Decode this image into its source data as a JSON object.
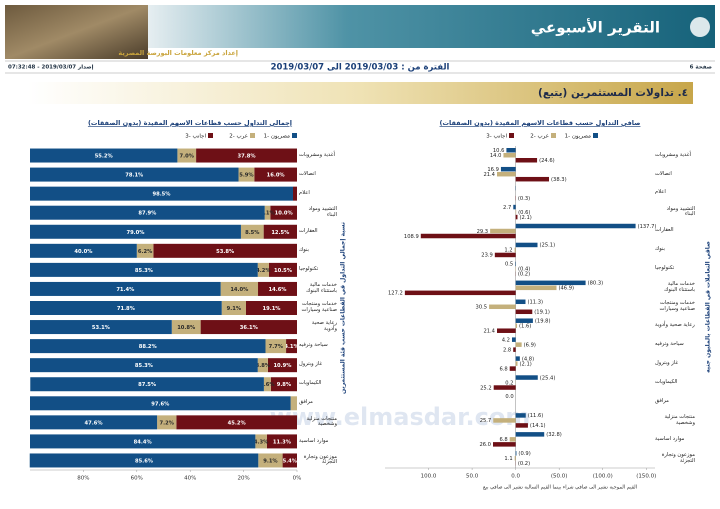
{
  "header": {
    "title": "التقرير الأسبوعي",
    "subtitle": "إعداد مركز معلومات البورصة المصرية",
    "page": "صفحة 6",
    "issued": "إصدار 2019/03/07 - 07:32:48",
    "period": "الفترة من : 2019/03/03 الى 2019/03/07",
    "section": "٤. تداولات المستثمرين (يتبع)",
    "watermark": "www.elmasdar.com"
  },
  "note": "القيم الموجبة تشير الى صافي شراء بينما القيم السالبة تشير الى صافي بيع",
  "chart_data": [
    {
      "type": "bar",
      "orientation": "horizontal",
      "stacked": true,
      "title": "إجمالي التداول حسب قطاعات الاسهم المقيدة (بدون الصفقات)",
      "y_label": "نسبة إجمالي التداول في القطاعات حسب فئة المستثمرين",
      "categories": [
        "أغذية ومشروبات",
        "اتصالات",
        "اعلام",
        "التشييد ومواد البناء",
        "العقارات",
        "بنوك",
        "تكنولوجيا",
        "خدمات مالية باستثناء البنوك",
        "خدمات ومنتجات صناعية وسيارات",
        "رعاية صحية وأدوية",
        "سياحة وترفيه",
        "غاز وبترول",
        "الكيماويات",
        "مرافق",
        "منتجات منزلية وشخصية",
        "موارد اساسية",
        "موزعون وتجارة التجزئة"
      ],
      "series": [
        {
          "name": "مصريون -1",
          "color": "#124f86",
          "values": [
            55.2,
            78.1,
            98.5,
            87.9,
            79.0,
            40.0,
            85.3,
            71.4,
            71.8,
            53.1,
            88.2,
            85.3,
            87.5,
            97.6,
            47.6,
            84.4,
            85.6
          ],
          "value_labels": [
            "55.2%",
            "78.1%",
            "98.5%",
            "87.9%",
            "79.0%",
            "40.0%",
            "85.3%",
            "71.4%",
            "71.8%",
            "53.1%",
            "88.2%",
            "85.3%",
            "87.5%",
            "97.6%",
            "47.6%",
            "84.4%",
            "85.6%"
          ]
        },
        {
          "name": "عرب -2",
          "color": "#c4b07c",
          "values": [
            7.0,
            5.9,
            0.0,
            2.1,
            8.5,
            6.2,
            4.2,
            14.0,
            9.1,
            10.8,
            7.7,
            3.8,
            2.6,
            2.4,
            7.2,
            4.3,
            9.1
          ],
          "value_labels": [
            "7.0%",
            "5.9%",
            null,
            "2.1%",
            "8.5%",
            "6.2%",
            "4.2%",
            "14.0%",
            "9.1%",
            "10.8%",
            "7.7%",
            "3.8%",
            "2.6%",
            null,
            "7.2%",
            "4.3%",
            "9.1%"
          ]
        },
        {
          "name": "اجانب -3",
          "color": "#6e1016",
          "values": [
            37.8,
            16.0,
            1.5,
            10.0,
            12.5,
            53.8,
            10.5,
            14.6,
            19.1,
            36.1,
            4.1,
            10.9,
            9.8,
            0.0,
            45.2,
            11.3,
            5.4
          ],
          "value_labels": [
            "37.8%",
            "16.0%",
            null,
            "10.0%",
            "12.5%",
            "53.8%",
            "10.5%",
            "14.6%",
            "19.1%",
            "36.1%",
            "4.1%",
            "10.9%",
            "9.8%",
            null,
            "45.2%",
            "11.3%",
            "5.4%"
          ]
        }
      ],
      "xlim": [
        100,
        0
      ],
      "xticks": [
        {
          "value": 80,
          "label": "80%"
        },
        {
          "value": 60,
          "label": "60%"
        },
        {
          "value": 40,
          "label": "40%"
        },
        {
          "value": 20,
          "label": "20%"
        },
        {
          "value": 0,
          "label": "0%"
        }
      ],
      "grid": false,
      "legend": "top"
    },
    {
      "type": "bar",
      "orientation": "horizontal",
      "stacked": false,
      "title": "صافي التداول حسب قطاعات الاسهم المقيدة (بدون الصفقات)",
      "y_label": "صافي التعاملات في القطاعات بالمليون جنيه",
      "categories": [
        "أغذية ومشروبات",
        "اتصالات",
        "اعلام",
        "التشييد ومواد البناء",
        "العقارات",
        "بنوك",
        "تكنولوجيا",
        "خدمات مالية باستثناء البنوك",
        "خدمات ومنتجات صناعية وسيارات",
        "رعاية صحية وأدوية",
        "سياحة وترفيه",
        "غاز وبترول",
        "الكيماويات",
        "مرافق",
        "منتجات منزلية وشخصية",
        "موارد اساسية",
        "موزعون وتجارة التجزئة"
      ],
      "series": [
        {
          "name": "مصريون -1",
          "color": "#124f86",
          "values": [
            10.6,
            16.9,
            0.3,
            2.7,
            -137.7,
            -25.1,
            0.5,
            -80.3,
            -11.3,
            -19.8,
            4.2,
            -4.8,
            -25.4,
            0.0,
            -11.6,
            -32.8,
            -0.9
          ],
          "value_labels": [
            "10.6",
            "16.9",
            null,
            "2.7",
            "(137.7)",
            "(25.1)",
            "0.5",
            "(80.3)",
            "(11.3)",
            "(19.8)",
            "4.2",
            "(4.8)",
            "(25.4)",
            "0.0",
            "(11.6)",
            "(32.8)",
            "(0.9)"
          ]
        },
        {
          "name": "عرب -2",
          "color": "#c4b07c",
          "values": [
            14.0,
            21.4,
            0.0,
            -0.6,
            29.3,
            1.2,
            -0.4,
            -46.9,
            30.5,
            -1.6,
            -6.9,
            -2.1,
            0.2,
            0.0,
            25.7,
            6.8,
            1.1
          ],
          "value_labels": [
            "14.0",
            "21.4",
            null,
            "(0.6)",
            "29.3",
            "1.2",
            "(0.4)",
            "(46.9)",
            "30.5",
            "(1.6)",
            "(6.9)",
            "(2.1)",
            "0.2",
            null,
            "25.7",
            "6.8",
            "1.1"
          ]
        },
        {
          "name": "اجانب -3",
          "color": "#6e1016",
          "values": [
            -24.6,
            -38.3,
            -0.3,
            -2.1,
            108.9,
            23.9,
            -0.2,
            127.2,
            -19.1,
            21.4,
            2.8,
            6.8,
            25.2,
            0.0,
            -14.1,
            26.0,
            -0.2
          ],
          "value_labels": [
            "(24.6)",
            "(38.3)",
            "(0.3)",
            "(2.1)",
            "108.9",
            "23.9",
            "(0.2)",
            "127.2",
            "(19.1)",
            "21.4",
            "2.8",
            "6.8",
            "25.2",
            null,
            "(14.1)",
            "26.0",
            "(0.2)"
          ]
        }
      ],
      "xlim": [
        150,
        -160
      ],
      "xticks": [
        {
          "value": 100,
          "label": "100.0"
        },
        {
          "value": 50,
          "label": "50.0"
        },
        {
          "value": 0,
          "label": "0.0"
        },
        {
          "value": -50,
          "label": "(50.0)"
        },
        {
          "value": -100,
          "label": "(100.0)"
        },
        {
          "value": -150,
          "label": "(150.0)"
        }
      ],
      "grid": false,
      "legend": "top"
    }
  ]
}
